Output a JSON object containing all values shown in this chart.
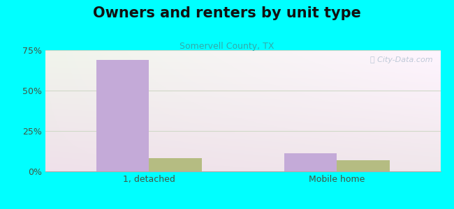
{
  "title": "Owners and renters by unit type",
  "subtitle": "Somervell County, TX",
  "categories": [
    "1, detached",
    "Mobile home"
  ],
  "owner_values": [
    69,
    11
  ],
  "renter_values": [
    8,
    7
  ],
  "owner_color": "#c4aad8",
  "renter_color": "#b5bc82",
  "ylim": [
    0,
    75
  ],
  "yticks": [
    0,
    25,
    50,
    75
  ],
  "ytick_labels": [
    "0%",
    "25%",
    "50%",
    "75%"
  ],
  "bg_color": "#00ffff",
  "grid_color": "#d0d8c8",
  "title_fontsize": 15,
  "subtitle_fontsize": 9,
  "tick_fontsize": 9,
  "legend_fontsize": 9,
  "bar_width": 0.28,
  "watermark": "City-Data.com"
}
